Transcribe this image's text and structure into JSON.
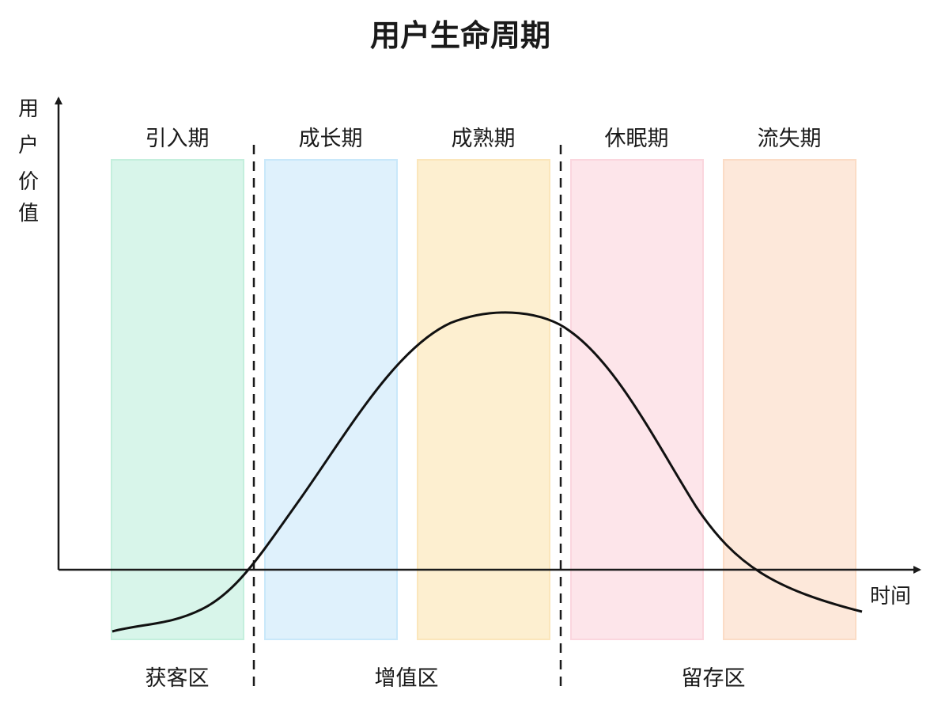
{
  "title": "用户生命周期",
  "y_axis_label": [
    "用",
    "户",
    "价",
    "值"
  ],
  "x_axis_label": "时间",
  "stages": [
    {
      "label": "引入期",
      "color": "#d8f5ea",
      "border": "#c4efdd"
    },
    {
      "label": "成长期",
      "color": "#dff1fc",
      "border": "#c9e8fa"
    },
    {
      "label": "成熟期",
      "color": "#fdefd0",
      "border": "#fbe6bb"
    },
    {
      "label": "休眠期",
      "color": "#fde5ea",
      "border": "#fbd6de"
    },
    {
      "label": "流失期",
      "color": "#fde8da",
      "border": "#fbdcc6"
    }
  ],
  "zones": [
    {
      "label": "获客区"
    },
    {
      "label": "增值区"
    },
    {
      "label": "留存区"
    }
  ]
}
